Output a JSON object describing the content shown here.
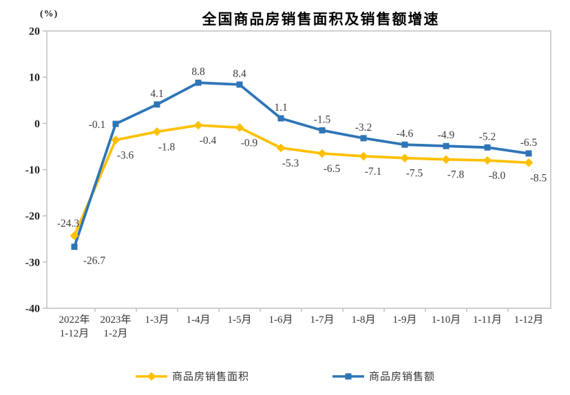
{
  "chart_data": {
    "type": "line",
    "title": "全国商品房销售面积及销售额增速",
    "unit_label": "(%)",
    "ylim": [
      -40,
      20
    ],
    "yticks": [
      20,
      10,
      0,
      -10,
      -20,
      -30,
      -40
    ],
    "grid": false,
    "legend_position": "bottom",
    "axis_color": "#BFBFBF",
    "label_color": "#3d3d3d",
    "categories": [
      [
        "2022年",
        "1-12月"
      ],
      [
        "2023年",
        "1-2月"
      ],
      [
        "1-3月"
      ],
      [
        "1-4月"
      ],
      [
        "1-5月"
      ],
      [
        "1-6月"
      ],
      [
        "1-7月"
      ],
      [
        "1-8月"
      ],
      [
        "1-9月"
      ],
      [
        "1-10月"
      ],
      [
        "1-11月"
      ],
      [
        "1-12月"
      ]
    ],
    "series": [
      {
        "name": "商品房销售面积",
        "color": "#FFC000",
        "marker": "diamond",
        "values": [
          -24.3,
          -3.6,
          -1.8,
          -0.4,
          -0.9,
          -5.3,
          -6.5,
          -7.1,
          -7.5,
          -7.8,
          -8.0,
          -8.5
        ]
      },
      {
        "name": "商品房销售额",
        "color": "#2E75B6",
        "marker": "square",
        "values": [
          -26.7,
          -0.1,
          4.1,
          8.8,
          8.4,
          1.1,
          -1.5,
          -3.2,
          -4.6,
          -4.9,
          -5.2,
          -6.5
        ]
      }
    ]
  }
}
